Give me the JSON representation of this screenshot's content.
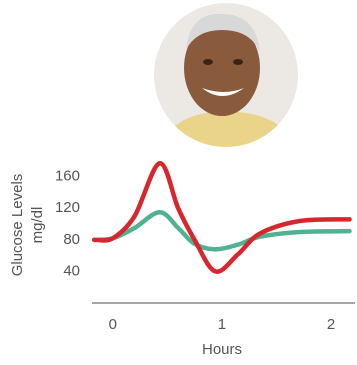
{
  "chart_data": {
    "type": "line",
    "y_label_lines": [
      "Glucose Levels",
      "mg/dl"
    ],
    "x_label": "Hours",
    "x": [
      -0.17,
      0,
      0.2,
      0.43,
      0.6,
      0.75,
      0.94,
      1.15,
      1.35,
      1.72,
      2.17
    ],
    "series": [
      {
        "color": "#d8262e",
        "values": [
          80,
          82,
          110,
          177,
          120,
          80,
          40,
          62,
          88,
          104,
          106
        ]
      },
      {
        "color": "#4fb392",
        "values": [
          80,
          82,
          95,
          115,
          95,
          75,
          68,
          74,
          84,
          90,
          91
        ]
      }
    ],
    "xlim": [
      -0.19,
      2.22
    ],
    "xticks": [
      0,
      1,
      2
    ],
    "ylim": [
      0,
      190
    ],
    "yticks": [
      40,
      80,
      120,
      160
    ]
  }
}
